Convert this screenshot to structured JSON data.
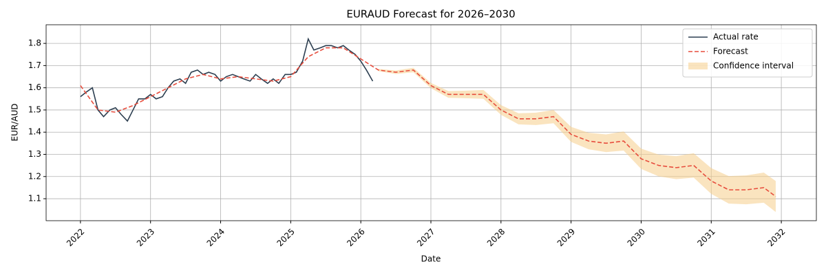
{
  "chart_data": {
    "type": "line",
    "title": "EURAUD Forecast for 2026–2030",
    "xlabel": "Date",
    "ylabel": "EUR/AUD",
    "xlim": [
      2021.51,
      2032.5
    ],
    "ylim": [
      1.001,
      1.884
    ],
    "xticks": [
      2022,
      2023,
      2024,
      2025,
      2026,
      2027,
      2028,
      2029,
      2030,
      2031,
      2032
    ],
    "yticks": [
      1.1,
      1.2,
      1.3,
      1.4,
      1.5,
      1.6,
      1.7,
      1.8
    ],
    "grid": true,
    "legend": "upper right",
    "series": [
      {
        "name": "Actual rate",
        "color": "#2c3e50",
        "dash": false,
        "x": [
          2022.0,
          2022.08,
          2022.17,
          2022.25,
          2022.33,
          2022.42,
          2022.5,
          2022.58,
          2022.67,
          2022.75,
          2022.83,
          2022.92,
          2023.0,
          2023.08,
          2023.17,
          2023.25,
          2023.33,
          2023.42,
          2023.5,
          2023.58,
          2023.67,
          2023.75,
          2023.83,
          2023.92,
          2024.0,
          2024.08,
          2024.17,
          2024.25,
          2024.33,
          2024.42,
          2024.5,
          2024.58,
          2024.67,
          2024.75,
          2024.83,
          2024.92,
          2025.0,
          2025.08,
          2025.17,
          2025.25,
          2025.33,
          2025.42,
          2025.5,
          2025.58,
          2025.67,
          2025.75,
          2025.83,
          2025.92,
          2026.0,
          2026.08,
          2026.17
        ],
        "values": [
          1.56,
          1.58,
          1.6,
          1.5,
          1.47,
          1.5,
          1.51,
          1.48,
          1.45,
          1.5,
          1.55,
          1.55,
          1.57,
          1.55,
          1.56,
          1.6,
          1.63,
          1.64,
          1.62,
          1.67,
          1.68,
          1.66,
          1.67,
          1.66,
          1.63,
          1.65,
          1.66,
          1.65,
          1.64,
          1.63,
          1.66,
          1.64,
          1.62,
          1.64,
          1.62,
          1.66,
          1.66,
          1.67,
          1.72,
          1.82,
          1.77,
          1.78,
          1.79,
          1.79,
          1.78,
          1.79,
          1.77,
          1.75,
          1.72,
          1.68,
          1.63
        ]
      },
      {
        "name": "Forecast",
        "color": "#e74c3c",
        "dash": true,
        "x": [
          2022.0,
          2022.25,
          2022.5,
          2022.75,
          2023.0,
          2023.25,
          2023.5,
          2023.75,
          2024.0,
          2024.25,
          2024.5,
          2024.75,
          2025.0,
          2025.25,
          2025.5,
          2025.75,
          2026.0,
          2026.25,
          2026.5,
          2026.75,
          2027.0,
          2027.25,
          2027.5,
          2027.75,
          2028.0,
          2028.25,
          2028.5,
          2028.75,
          2029.0,
          2029.25,
          2029.5,
          2029.75,
          2030.0,
          2030.25,
          2030.5,
          2030.75,
          2031.0,
          2031.25,
          2031.5,
          2031.75,
          2031.92
        ],
        "values": [
          1.61,
          1.5,
          1.49,
          1.52,
          1.56,
          1.6,
          1.64,
          1.66,
          1.64,
          1.65,
          1.64,
          1.63,
          1.65,
          1.74,
          1.78,
          1.78,
          1.73,
          1.68,
          1.67,
          1.68,
          1.61,
          1.57,
          1.57,
          1.57,
          1.5,
          1.46,
          1.46,
          1.47,
          1.39,
          1.36,
          1.35,
          1.36,
          1.28,
          1.25,
          1.24,
          1.25,
          1.18,
          1.14,
          1.14,
          1.15,
          1.11
        ]
      }
    ],
    "band": {
      "name": "Confidence interval",
      "color": "#f5cd8a",
      "x": [
        2026.25,
        2026.5,
        2026.75,
        2027.0,
        2027.25,
        2027.5,
        2027.75,
        2028.0,
        2028.25,
        2028.5,
        2028.75,
        2029.0,
        2029.25,
        2029.5,
        2029.75,
        2030.0,
        2030.25,
        2030.5,
        2030.75,
        2031.0,
        2031.25,
        2031.5,
        2031.75,
        2031.92
      ],
      "lower": [
        1.675,
        1.662,
        1.67,
        1.598,
        1.555,
        1.553,
        1.55,
        1.478,
        1.435,
        1.432,
        1.44,
        1.356,
        1.323,
        1.31,
        1.317,
        1.234,
        1.201,
        1.188,
        1.195,
        1.122,
        1.078,
        1.075,
        1.082,
        1.04
      ],
      "upper": [
        1.685,
        1.678,
        1.69,
        1.622,
        1.585,
        1.587,
        1.59,
        1.522,
        1.485,
        1.488,
        1.5,
        1.424,
        1.397,
        1.39,
        1.403,
        1.326,
        1.299,
        1.292,
        1.305,
        1.238,
        1.202,
        1.205,
        1.218,
        1.18
      ]
    }
  }
}
